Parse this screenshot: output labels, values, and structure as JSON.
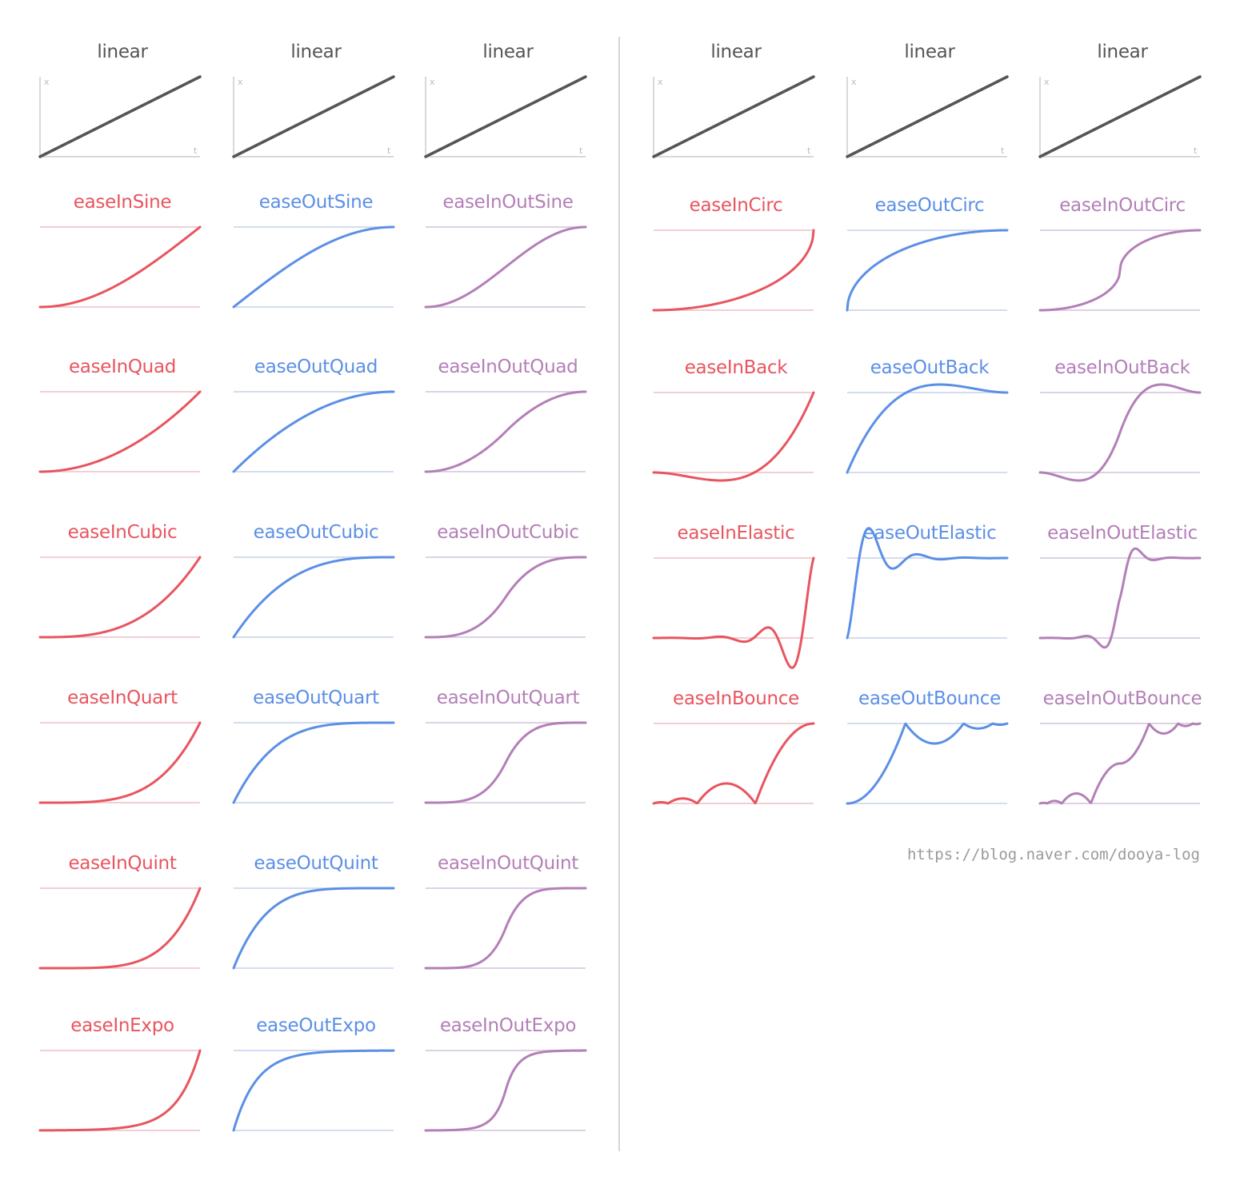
{
  "colors": {
    "linear": "#555555",
    "in": "#e8555f",
    "out": "#5b8fe6",
    "inout": "#b37fb7",
    "axis": "#cccccc",
    "divider": "#d6d6d6"
  },
  "axis_labels": {
    "x": "x",
    "t": "t"
  },
  "watermark": "https://blog.naver.com/dooya-log",
  "chart_data": {
    "type": "line",
    "description_axes": {
      "x_range": [
        0,
        1
      ],
      "y_range": [
        0,
        1
      ]
    },
    "groups": [
      {
        "columns": [
          {
            "title": "linear",
            "kind": "linear",
            "fn": "linear"
          },
          {
            "title": "linear",
            "kind": "linear",
            "fn": "linear"
          },
          {
            "title": "linear",
            "kind": "linear",
            "fn": "linear"
          }
        ],
        "rows": [
          [
            {
              "title": "easeInSine",
              "kind": "in",
              "fn": "easeInSine"
            },
            {
              "title": "easeOutSine",
              "kind": "out",
              "fn": "easeOutSine"
            },
            {
              "title": "easeInOutSine",
              "kind": "inout",
              "fn": "easeInOutSine"
            }
          ],
          [
            {
              "title": "easeInQuad",
              "kind": "in",
              "fn": "easeInQuad"
            },
            {
              "title": "easeOutQuad",
              "kind": "out",
              "fn": "easeOutQuad"
            },
            {
              "title": "easeInOutQuad",
              "kind": "inout",
              "fn": "easeInOutQuad"
            }
          ],
          [
            {
              "title": "easeInCubic",
              "kind": "in",
              "fn": "easeInCubic"
            },
            {
              "title": "easeOutCubic",
              "kind": "out",
              "fn": "easeOutCubic"
            },
            {
              "title": "easeInOutCubic",
              "kind": "inout",
              "fn": "easeInOutCubic"
            }
          ],
          [
            {
              "title": "easeInQuart",
              "kind": "in",
              "fn": "easeInQuart"
            },
            {
              "title": "easeOutQuart",
              "kind": "out",
              "fn": "easeOutQuart"
            },
            {
              "title": "easeInOutQuart",
              "kind": "inout",
              "fn": "easeInOutQuart"
            }
          ],
          [
            {
              "title": "easeInQuint",
              "kind": "in",
              "fn": "easeInQuint"
            },
            {
              "title": "easeOutQuint",
              "kind": "out",
              "fn": "easeOutQuint"
            },
            {
              "title": "easeInOutQuint",
              "kind": "inout",
              "fn": "easeInOutQuint"
            }
          ],
          [
            {
              "title": "easeInExpo",
              "kind": "in",
              "fn": "easeInExpo"
            },
            {
              "title": "easeOutExpo",
              "kind": "out",
              "fn": "easeOutExpo"
            },
            {
              "title": "easeInOutExpo",
              "kind": "inout",
              "fn": "easeInOutExpo"
            }
          ]
        ]
      },
      {
        "columns": [
          {
            "title": "linear",
            "kind": "linear",
            "fn": "linear"
          },
          {
            "title": "linear",
            "kind": "linear",
            "fn": "linear"
          },
          {
            "title": "linear",
            "kind": "linear",
            "fn": "linear"
          }
        ],
        "rows": [
          [
            {
              "title": "easeInCirc",
              "kind": "in",
              "fn": "easeInCirc"
            },
            {
              "title": "easeOutCirc",
              "kind": "out",
              "fn": "easeOutCirc"
            },
            {
              "title": "easeInOutCirc",
              "kind": "inout",
              "fn": "easeInOutCirc"
            }
          ],
          [
            {
              "title": "easeInBack",
              "kind": "in",
              "fn": "easeInBack"
            },
            {
              "title": "easeOutBack",
              "kind": "out",
              "fn": "easeOutBack"
            },
            {
              "title": "easeInOutBack",
              "kind": "inout",
              "fn": "easeInOutBack"
            }
          ],
          [
            {
              "title": "easeInElastic",
              "kind": "in",
              "fn": "easeInElastic"
            },
            {
              "title": "easeOutElastic",
              "kind": "out",
              "fn": "easeOutElastic"
            },
            {
              "title": "easeInOutElastic",
              "kind": "inout",
              "fn": "easeInOutElastic"
            }
          ],
          [
            {
              "title": "easeInBounce",
              "kind": "in",
              "fn": "easeInBounce"
            },
            {
              "title": "easeOutBounce",
              "kind": "out",
              "fn": "easeOutBounce"
            },
            {
              "title": "easeInOutBounce",
              "kind": "inout",
              "fn": "easeInOutBounce"
            }
          ]
        ]
      }
    ]
  }
}
